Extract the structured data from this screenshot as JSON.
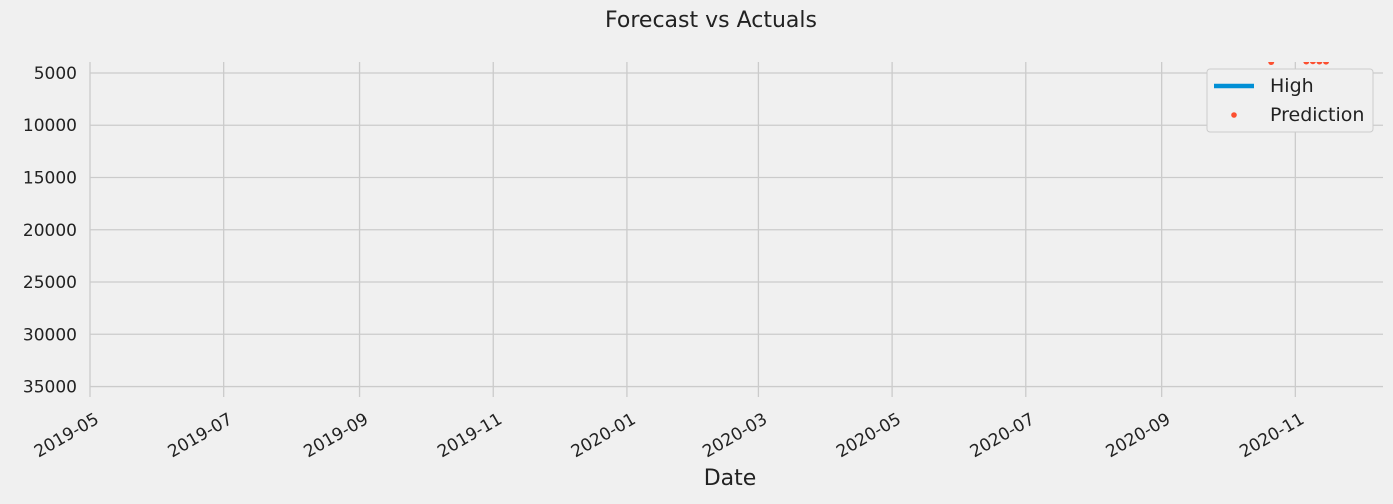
{
  "chart_data": {
    "type": "line",
    "title": "Forecast vs Actuals",
    "xlabel": "Date",
    "ylabel": "",
    "x_ticks": [
      "2019-05",
      "2019-07",
      "2019-09",
      "2019-11",
      "2020-01",
      "2020-03",
      "2020-05",
      "2020-07",
      "2020-09",
      "2020-11"
    ],
    "y_ticks": [
      5000,
      10000,
      15000,
      20000,
      25000,
      30000,
      35000
    ],
    "y_tick_labels": [
      "5000",
      "10000",
      "15000",
      "20000",
      "25000",
      "30000",
      "35000"
    ],
    "xlim": [
      "2019-05-01",
      "2020-12-11"
    ],
    "ylim": [
      36000,
      3950
    ],
    "y_inverted": true,
    "grid": true,
    "legend_position": "top-right",
    "series": [
      {
        "name": "High",
        "style": "line",
        "color": "#008fd5",
        "points": []
      },
      {
        "name": "Prediction",
        "style": "points",
        "color": "#fc4f30",
        "points": [
          {
            "x": "2020-10-21",
            "y": 3950
          },
          {
            "x": "2020-11-06",
            "y": 3900
          },
          {
            "x": "2020-11-09",
            "y": 3880
          },
          {
            "x": "2020-11-12",
            "y": 3900
          },
          {
            "x": "2020-11-15",
            "y": 3920
          }
        ]
      }
    ]
  }
}
